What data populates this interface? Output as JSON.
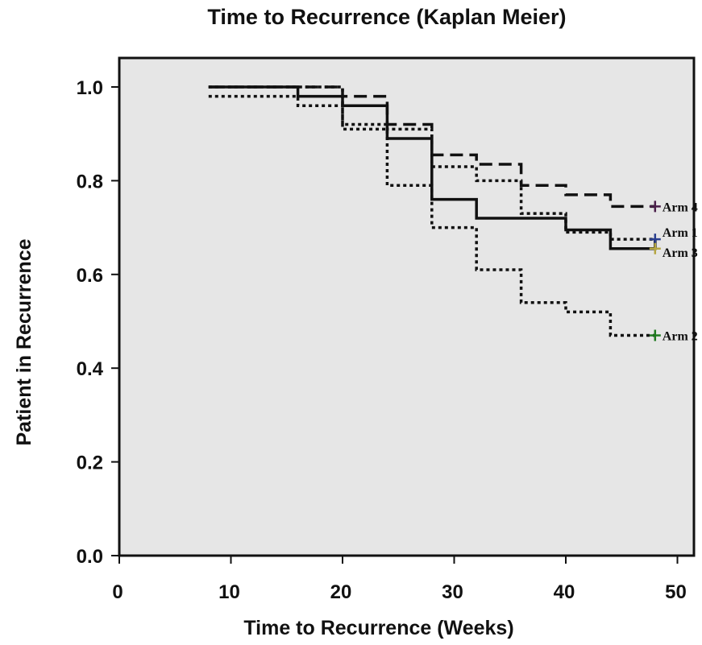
{
  "chart_data": {
    "type": "line",
    "title": "Time to Recurrence (Kaplan Meier)",
    "xlabel": "Time to Recurrence (Weeks)",
    "ylabel": "Patient in Recurrence",
    "xlim": [
      0,
      50
    ],
    "ylim": [
      0,
      1.0
    ],
    "x_ticks": [
      "0",
      "10",
      "20",
      "30",
      "40",
      "50"
    ],
    "y_ticks": [
      "0.0",
      "0.2",
      "0.4",
      "0.6",
      "0.8",
      "1.0"
    ],
    "grid": false,
    "background_color": "#e6e6e6",
    "series": [
      {
        "name": "Arm 1",
        "style": "solid",
        "marker_color": "#2a3f8f",
        "end_x": 48,
        "x": [
          8,
          16,
          20,
          24,
          28,
          32,
          40,
          44,
          48
        ],
        "y": [
          1.0,
          0.98,
          0.96,
          0.89,
          0.76,
          0.72,
          0.695,
          0.655,
          0.675
        ]
      },
      {
        "name": "Arm 2",
        "style": "dotted",
        "marker_color": "#1f7a1f",
        "end_x": 48,
        "x": [
          8,
          16,
          20,
          24,
          28,
          32,
          36,
          40,
          44,
          48
        ],
        "y": [
          0.98,
          0.96,
          0.91,
          0.79,
          0.7,
          0.61,
          0.54,
          0.52,
          0.47,
          0.47
        ]
      },
      {
        "name": "Arm 3",
        "style": "dotted",
        "marker_color": "#b5a642",
        "end_x": 48,
        "x": [
          8,
          20,
          24,
          28,
          32,
          36,
          40,
          44,
          48
        ],
        "y": [
          1.0,
          0.92,
          0.91,
          0.83,
          0.8,
          0.73,
          0.69,
          0.675,
          0.655
        ]
      },
      {
        "name": "Arm 4",
        "style": "dashed",
        "marker_color": "#4a1f4a",
        "end_x": 48,
        "x": [
          8,
          20,
          24,
          28,
          32,
          36,
          40,
          44,
          48
        ],
        "y": [
          1.0,
          0.98,
          0.92,
          0.855,
          0.835,
          0.79,
          0.77,
          0.745,
          0.745
        ]
      }
    ]
  }
}
